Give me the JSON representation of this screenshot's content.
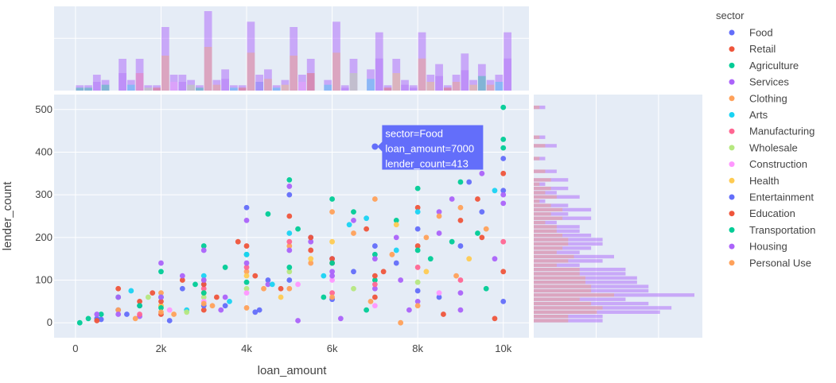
{
  "chart_data": {
    "type": "scatter",
    "xlabel": "loan_amount",
    "ylabel": "lender_count",
    "xlim": [
      -500,
      10600
    ],
    "ylim": [
      -35,
      535
    ],
    "x_ticks": [
      {
        "v": 0,
        "label": "0"
      },
      {
        "v": 2000,
        "label": "2k"
      },
      {
        "v": 4000,
        "label": "4k"
      },
      {
        "v": 6000,
        "label": "6k"
      },
      {
        "v": 8000,
        "label": "8k"
      },
      {
        "v": 10000,
        "label": "10k"
      }
    ],
    "y_ticks": [
      {
        "v": 0,
        "label": "0"
      },
      {
        "v": 100,
        "label": "100"
      },
      {
        "v": 200,
        "label": "200"
      },
      {
        "v": 300,
        "label": "300"
      },
      {
        "v": 400,
        "label": "400"
      },
      {
        "v": 500,
        "label": "500"
      }
    ],
    "marginal_x": "histogram",
    "marginal_y": "histogram",
    "grid": true,
    "legend_position": "right",
    "legend_title": "sector",
    "series": [
      {
        "name": "Food",
        "color": "#636efa",
        "points": [
          [
            7000,
            413
          ],
          [
            10000,
            385
          ],
          [
            5000,
            300
          ],
          [
            4000,
            270
          ],
          [
            8000,
            220
          ],
          [
            6000,
            150
          ],
          [
            3000,
            90
          ],
          [
            2000,
            60
          ],
          [
            1000,
            30
          ],
          [
            500,
            10
          ],
          [
            9500,
            260
          ],
          [
            9000,
            180
          ],
          [
            7500,
            140
          ],
          [
            6500,
            120
          ],
          [
            5500,
            200
          ],
          [
            2500,
            80
          ],
          [
            1500,
            40
          ],
          [
            4500,
            100
          ],
          [
            8500,
            60
          ],
          [
            10000,
            50
          ],
          [
            10000,
            310
          ],
          [
            3500,
            40
          ],
          [
            7000,
            180
          ],
          [
            9200,
            330
          ],
          [
            600,
            8
          ],
          [
            1200,
            20
          ],
          [
            2200,
            5
          ],
          [
            4300,
            30
          ]
        ]
      },
      {
        "name": "Retail",
        "color": "#ef553b",
        "points": [
          [
            10000,
            350
          ],
          [
            5000,
            250
          ],
          [
            3800,
            190
          ],
          [
            9400,
            290
          ],
          [
            2500,
            100
          ],
          [
            1000,
            80
          ],
          [
            6000,
            140
          ],
          [
            8000,
            270
          ],
          [
            7000,
            60
          ],
          [
            4200,
            110
          ],
          [
            3000,
            30
          ],
          [
            1500,
            50
          ],
          [
            500,
            5
          ],
          [
            5500,
            170
          ],
          [
            6800,
            220
          ],
          [
            9000,
            240
          ],
          [
            8600,
            20
          ],
          [
            2000,
            20
          ],
          [
            4800,
            80
          ],
          [
            7200,
            120
          ],
          [
            10000,
            120
          ],
          [
            9800,
            10
          ],
          [
            3300,
            60
          ],
          [
            1800,
            70
          ]
        ]
      },
      {
        "name": "Agriculture",
        "color": "#00cc96",
        "points": [
          [
            10000,
            505
          ],
          [
            10000,
            430
          ],
          [
            8000,
            315
          ],
          [
            9000,
            330
          ],
          [
            6000,
            290
          ],
          [
            5000,
            335
          ],
          [
            4500,
            255
          ],
          [
            7500,
            240
          ],
          [
            3000,
            180
          ],
          [
            2000,
            120
          ],
          [
            1000,
            60
          ],
          [
            100,
            0
          ],
          [
            5200,
            220
          ],
          [
            6500,
            260
          ],
          [
            8800,
            190
          ],
          [
            4000,
            160
          ],
          [
            3500,
            130
          ],
          [
            2800,
            90
          ],
          [
            1500,
            40
          ],
          [
            7000,
            100
          ],
          [
            9600,
            80
          ],
          [
            600,
            20
          ],
          [
            300,
            10
          ],
          [
            5800,
            60
          ],
          [
            6800,
            30
          ],
          [
            8300,
            150
          ]
        ]
      },
      {
        "name": "Services",
        "color": "#ab63fa",
        "points": [
          [
            10000,
            300
          ],
          [
            9500,
            350
          ],
          [
            8500,
            260
          ],
          [
            7500,
            200
          ],
          [
            6500,
            240
          ],
          [
            5000,
            320
          ],
          [
            4000,
            240
          ],
          [
            3000,
            170
          ],
          [
            2000,
            140
          ],
          [
            1000,
            60
          ],
          [
            500,
            20
          ],
          [
            5500,
            190
          ],
          [
            6000,
            120
          ],
          [
            7000,
            80
          ],
          [
            8000,
            50
          ],
          [
            9000,
            30
          ],
          [
            4500,
            90
          ],
          [
            3500,
            60
          ],
          [
            2500,
            110
          ],
          [
            1500,
            15
          ],
          [
            9800,
            150
          ],
          [
            8800,
            290
          ],
          [
            6200,
            10
          ],
          [
            7800,
            30
          ],
          [
            5200,
            5
          ]
        ]
      },
      {
        "name": "Clothing",
        "color": "#ffa15a",
        "points": [
          [
            9000,
            270
          ],
          [
            8500,
            250
          ],
          [
            7000,
            290
          ],
          [
            6000,
            260
          ],
          [
            5000,
            180
          ],
          [
            4000,
            120
          ],
          [
            3000,
            100
          ],
          [
            2000,
            70
          ],
          [
            1000,
            30
          ],
          [
            9600,
            220
          ],
          [
            6500,
            210
          ],
          [
            7400,
            160
          ],
          [
            8200,
            200
          ],
          [
            5500,
            140
          ],
          [
            4400,
            80
          ],
          [
            3200,
            40
          ],
          [
            2300,
            20
          ],
          [
            1400,
            10
          ],
          [
            7600,
            0
          ],
          [
            6900,
            50
          ],
          [
            8900,
            110
          ]
        ]
      },
      {
        "name": "Arts",
        "color": "#19d3f3",
        "points": [
          [
            6800,
            245
          ],
          [
            6400,
            230
          ],
          [
            5000,
            210
          ],
          [
            4000,
            160
          ],
          [
            3000,
            110
          ],
          [
            1300,
            75
          ],
          [
            2000,
            60
          ],
          [
            7500,
            170
          ],
          [
            8000,
            260
          ],
          [
            9800,
            310
          ],
          [
            5800,
            110
          ],
          [
            3600,
            50
          ],
          [
            2600,
            30
          ],
          [
            4600,
            90
          ]
        ]
      },
      {
        "name": "Manufacturing",
        "color": "#ff6692",
        "points": [
          [
            5000,
            190
          ],
          [
            4000,
            130
          ],
          [
            3000,
            80
          ],
          [
            2000,
            40
          ],
          [
            7000,
            90
          ],
          [
            8000,
            130
          ],
          [
            6000,
            70
          ],
          [
            9000,
            100
          ],
          [
            10000,
            190
          ],
          [
            1500,
            20
          ]
        ]
      },
      {
        "name": "Wholesale",
        "color": "#b6e880",
        "points": [
          [
            5000,
            120
          ],
          [
            4000,
            80
          ],
          [
            3000,
            60
          ],
          [
            6500,
            80
          ],
          [
            1700,
            60
          ],
          [
            8000,
            95
          ],
          [
            2600,
            25
          ]
        ]
      },
      {
        "name": "Construction",
        "color": "#ff97ff",
        "points": [
          [
            6000,
            100
          ],
          [
            4000,
            70
          ],
          [
            3000,
            50
          ],
          [
            7000,
            40
          ],
          [
            2200,
            30
          ],
          [
            8500,
            70
          ],
          [
            5200,
            90
          ]
        ]
      },
      {
        "name": "Health",
        "color": "#fecb52",
        "points": [
          [
            7500,
            230
          ],
          [
            6000,
            190
          ],
          [
            4000,
            110
          ],
          [
            3000,
            70
          ],
          [
            5500,
            150
          ],
          [
            2000,
            40
          ],
          [
            8200,
            120
          ],
          [
            9200,
            150
          ],
          [
            4800,
            60
          ]
        ]
      },
      {
        "name": "Entertainment",
        "color": "#636efa",
        "points": [
          [
            5000,
            100
          ],
          [
            6000,
            55
          ],
          [
            3000,
            40
          ],
          [
            8000,
            75
          ],
          [
            4200,
            25
          ]
        ]
      },
      {
        "name": "Education",
        "color": "#ef553b",
        "points": [
          [
            5500,
            200
          ],
          [
            4000,
            180
          ],
          [
            3000,
            90
          ],
          [
            6000,
            150
          ],
          [
            2000,
            50
          ],
          [
            8000,
            180
          ],
          [
            9500,
            200
          ],
          [
            7000,
            110
          ]
        ]
      },
      {
        "name": "Transportation",
        "color": "#00cc96",
        "points": [
          [
            10000,
            410
          ],
          [
            8000,
            170
          ],
          [
            6000,
            140
          ],
          [
            5000,
            130
          ],
          [
            4000,
            95
          ],
          [
            3000,
            70
          ],
          [
            2000,
            35
          ],
          [
            7000,
            160
          ],
          [
            9400,
            210
          ]
        ]
      },
      {
        "name": "Housing",
        "color": "#ab63fa",
        "points": [
          [
            10000,
            280
          ],
          [
            8500,
            210
          ],
          [
            7000,
            150
          ],
          [
            6000,
            110
          ],
          [
            5000,
            170
          ],
          [
            4000,
            140
          ],
          [
            3000,
            100
          ],
          [
            2000,
            60
          ],
          [
            1000,
            20
          ],
          [
            9000,
            70
          ],
          [
            7600,
            100
          ],
          [
            3400,
            30
          ]
        ]
      },
      {
        "name": "Personal Use",
        "color": "#ffa15a",
        "points": [
          [
            5000,
            80
          ],
          [
            3000,
            45
          ],
          [
            2000,
            25
          ],
          [
            6000,
            60
          ],
          [
            4000,
            35
          ],
          [
            8000,
            40
          ]
        ]
      }
    ],
    "hover": {
      "lines": [
        "sector=Food",
        "loan_amount=7000",
        "lender_count=413"
      ],
      "x": 7000,
      "y": 413,
      "color": "#636efa"
    }
  }
}
